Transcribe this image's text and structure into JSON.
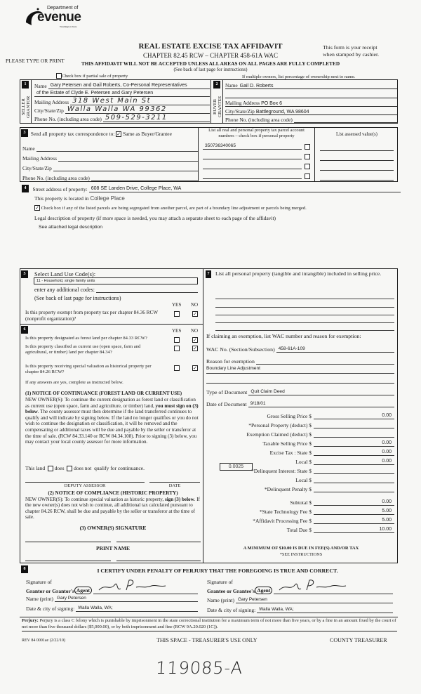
{
  "header": {
    "logo_dept": "Department of",
    "logo_word": "Revenue",
    "logo_state": "Washington State",
    "please": "PLEASE TYPE OR PRINT",
    "title": "REAL ESTATE EXCISE TAX AFFIDAVIT",
    "chapter": "CHAPTER 82.45 RCW – CHAPTER 458-61A WAC",
    "warning": "THIS AFFIDAVIT WILL NOT BE ACCEPTED UNLESS ALL AREAS ON ALL PAGES ARE FULLY COMPLETED",
    "see_back": "(See back of last page for instructions)",
    "receipt1": "This form is your receipt",
    "receipt2": "when stamped by cashier.",
    "partial_sale_label": "Check box if partial sale of property",
    "partial_sale_checked": false,
    "multiple_owners": "If multiple owners, list percentage of ownership next to name."
  },
  "seller": {
    "num": "1",
    "side1": "SELLER",
    "side2": "GRANTOR",
    "name_label": "Name",
    "name_value": "Gary Petersen and Gail Roberts, Co-Personal Representatives",
    "name_value2": "of the Estate of Clyde E. Petersen and Gary Petersen",
    "mailing_label": "Mailing Address",
    "mailing_value": "318 West Main St",
    "city_label": "City/State/Zip",
    "city_value": "Walla Walla   WA   99362",
    "phone_label": "Phone No. (including area code)",
    "phone_value": "509-529-3211"
  },
  "buyer": {
    "num": "2",
    "side1": "BUYER",
    "side2": "GRANTEE",
    "name_label": "Name",
    "name_value": "Gail D. Roberts",
    "mailing_label": "Mailing Address",
    "mailing_value": "PO Box 6",
    "city_label": "City/State/Zip",
    "city_value": "Battleground, WA 98604",
    "phone_label": "Phone No. (including area code)",
    "phone_value": ""
  },
  "correspondence": {
    "num": "3",
    "label": "Send all property tax correspondence to:",
    "same_label": "Same as Buyer/Grantee",
    "same_checked": true,
    "name_label": "Name",
    "mailing_label": "Mailing Address",
    "city_label": "City/State/Zip",
    "phone_label": "Phone No. (including area code)"
  },
  "parcels": {
    "header": "List all real and personal property tax parcel account numbers – check box if personal property",
    "assessed_header": "List assessed value(s)",
    "accounts": [
      "350736340065",
      "",
      "",
      ""
    ]
  },
  "section4": {
    "num": "4",
    "street_label": "Street address of property:",
    "street_value": "608 SE Landen Drive, College Place, WA",
    "located_label": "This property is located in",
    "located_value": "College Place",
    "segregated_label": "Check box if any of the listed parcels are being segregated from another parcel, are part of a boundary line adjustment or parcels being merged.",
    "segregated_checked": true,
    "legal_label": "Legal description of property (if more space is needed, you may attach a separate sheet to each page of the affidavit)",
    "legal_value": "See attached legal description"
  },
  "section5": {
    "num": "5",
    "label": "Select Land Use Code(s):",
    "code_value": "11 - Household, single family units",
    "additional_label": "enter any additional codes:",
    "see_back": "(See back of last page for instructions)",
    "yes": "YES",
    "no": "NO",
    "exempt_q": "Is this property exempt from property tax per chapter 84.36 RCW (nonprofit organization)?",
    "exempt_answer": "no"
  },
  "section6": {
    "num": "6",
    "yes": "YES",
    "no": "NO",
    "q1": "Is this property designated as forest land per chapter 84.33 RCW?",
    "q1_answer": "no",
    "q2": "Is this property classified as current use (open space, farm and agricultural, or timber) land per chapter 84.34?",
    "q2_answer": "no",
    "q3": "Is this property receiving special valuation as historical property per chapter 84.26 RCW?",
    "q3_answer": "no",
    "if_yes": "If any answers are yes, complete as instructed below.",
    "notice1_title": "(1) NOTICE OF CONTINUANCE (FOREST LAND OR CURRENT USE)",
    "notice1_a": "NEW OWNER(S): To continue the current designation as forest land or classification as current use (open space, farm and agriculture, or timber) land, ",
    "notice1_b": "you must sign on (3) below",
    "notice1_c": ". The county assessor must then determine if the land transferred continues to qualify and will indicate by signing below. If the land no longer qualifies or you do not wish to continue the designation or classification, it will be removed and the compensating or additional taxes will be due and payable by the seller or transferor at the time of sale. (RCW 84.33.140 or RCW 84.34.108). Prior to signing (3) below, you may contact your local county assessor for more information.",
    "this_land": "This land",
    "does": "does",
    "does_not": "does not",
    "qualify": "qualify for continuance.",
    "deputy": "DEPUTY ASSESSOR",
    "date": "DATE",
    "notice2_title": "(2) NOTICE OF COMPLIANCE (HISTORIC PROPERTY)",
    "notice2_a": "NEW OWNER(S): To continue special valuation as historic property, ",
    "notice2_b": "sign (3) below",
    "notice2_c": ". If the new owner(s) does not wish to continue, all additional tax calculated pursuant to chapter 84.26 RCW, shall be due and payable by the seller or transferor at the time of sale.",
    "owner_sig": "(3) OWNER(S) SIGNATURE",
    "print_name": "PRINT NAME"
  },
  "section7": {
    "num": "7",
    "label": "List all  personal property (tangible and intangible) included in selling price.",
    "claiming": "If claiming an exemption, list WAC number and reason for exemption:",
    "wac_label": "WAC No. (Section/Subsection)",
    "wac_value": "458-61A-109",
    "reason_label": "Reason for exemption",
    "reason_value": "Boundary Line Adjustment",
    "doc_type_label": "Type of Document",
    "doc_type_value": "Quit Claim Deed",
    "doc_date_label": "Date of Document",
    "doc_date_value": "9/18/01",
    "local_rate": "0.0025",
    "fees": [
      {
        "label": "Gross Selling Price $",
        "value": "0.00"
      },
      {
        "label": "*Personal Property (deduct) $",
        "value": ""
      },
      {
        "label": "Exemption Claimed (deduct) $",
        "value": ""
      },
      {
        "label": "Taxable Selling Price $",
        "value": "0.00"
      },
      {
        "label": "Excise Tax : State $",
        "value": "0.00"
      },
      {
        "label": "Local $",
        "value": "0.00"
      },
      {
        "label": "*Delinquent Interest: State $",
        "value": ""
      },
      {
        "label": "Local $",
        "value": ""
      },
      {
        "label": "*Delinquent Penalty $",
        "value": ""
      },
      {
        "label": "Subtotal $",
        "value": "0.00"
      },
      {
        "label": "*State Technology Fee $",
        "value": "5.00"
      },
      {
        "label": "*Affidavit Processing Fee $",
        "value": "5.00"
      },
      {
        "label": "Total Due $",
        "value": "10.00"
      }
    ],
    "minimum": "A MINIMUM OF $10.00 IS DUE IN FEE(S) AND/OR TAX",
    "see_instructions": "*SEE INSTRUCTIONS"
  },
  "section8": {
    "num": "8",
    "certify": "I CERTIFY UNDER PENALTY OF PERJURY THAT THE FOREGOING IS TRUE AND CORRECT.",
    "sig_of": "Signature of",
    "grantor_label": "Grantor or Grantor's",
    "grantee_label": "Grantee or Grantee's",
    "agent": "Agent",
    "name_print_label": "Name (print)",
    "grantor_name": "Gary Petersen",
    "grantee_name": "Gary Petersen",
    "date_city_label": "Date & city of signing:",
    "grantor_date_city": "Walla Walla, WA;",
    "grantee_date_city": "Walla Walla, WA;"
  },
  "footer": {
    "perjury_label": "Perjury:",
    "perjury_text": " Perjury is a class C felony which is punishable by imprisonment in the state correctional institution for a maximum term of not more than five years, or by a fine in an amount fixed by the court of not more than five thousand dollars ($5,000.00), or by both imprisonment and fine (RCW 9A.20.020 (1C)).",
    "rev": "REV 84 0001ae (2/22/10)",
    "treasurer_only": "THIS SPACE - TREASURER'S USE ONLY",
    "county_treasurer": "COUNTY TREASURER",
    "handwritten_number": "119085-A"
  }
}
